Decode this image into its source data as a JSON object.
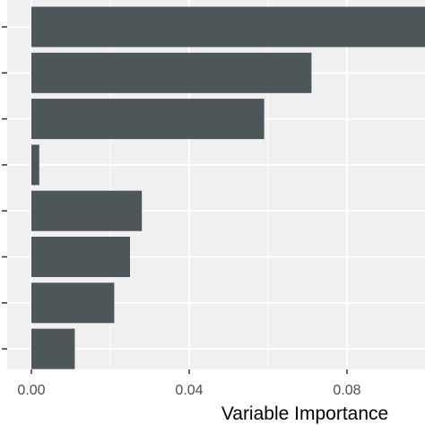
{
  "chart_data": {
    "type": "bar",
    "orientation": "horizontal",
    "title": "",
    "xlabel": "Variable Importance",
    "ylabel": "",
    "categories": [
      "",
      "",
      "",
      "",
      "",
      "",
      "",
      ""
    ],
    "values": [
      0.1,
      0.071,
      0.059,
      0.002,
      0.028,
      0.025,
      0.021,
      0.011
    ],
    "xlim": [
      0,
      0.1
    ],
    "xticks": [
      0.0,
      0.04,
      0.08
    ],
    "xtick_labels": [
      "0.00",
      "0.04",
      "0.08"
    ],
    "grid": true,
    "legend": "none",
    "colors": {
      "bar": "#4d5759",
      "panel": "#f0f0f0",
      "grid": "#ffffff"
    }
  }
}
